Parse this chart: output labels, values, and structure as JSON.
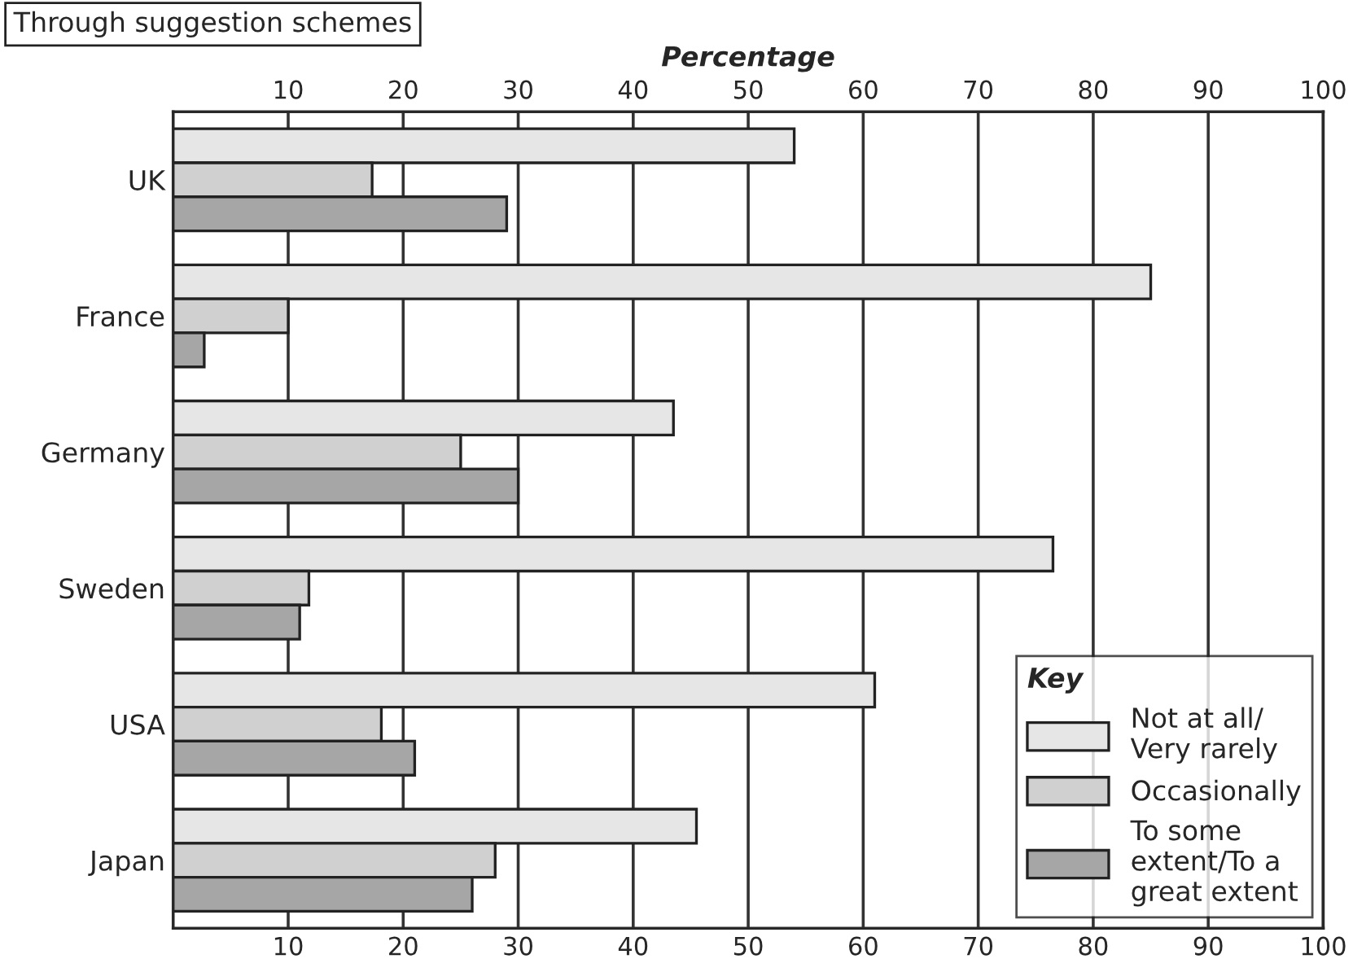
{
  "chart_data": {
    "type": "bar",
    "orientation": "horizontal",
    "title": "Through suggestion schemes",
    "x2label": "Percentage",
    "categories": [
      "UK",
      "France",
      "Germany",
      "Sweden",
      "USA",
      "Japan"
    ],
    "series": [
      {
        "name": "Not at all/\nVery rarely",
        "color": "#e6e6e6",
        "values": [
          54,
          85,
          43.5,
          76.5,
          61,
          45.5
        ]
      },
      {
        "name": "Occasionally",
        "color": "#d0d0d0",
        "values": [
          17.3,
          10,
          25,
          11.8,
          18.1,
          28
        ]
      },
      {
        "name": "To some\nextent/To a\ngreat extent",
        "color": "#a6a6a6",
        "values": [
          29,
          2.7,
          30,
          11,
          21,
          26
        ]
      }
    ],
    "xlim": [
      0,
      100
    ],
    "xticks": [
      10,
      20,
      30,
      40,
      50,
      60,
      70,
      80,
      90,
      100
    ],
    "x2lim": [
      0,
      100
    ],
    "x2ticks": [
      10,
      20,
      30,
      40,
      50,
      60,
      70,
      80,
      90,
      100
    ],
    "grid": "x",
    "legend": "bottom right",
    "legend_title": "Key"
  }
}
